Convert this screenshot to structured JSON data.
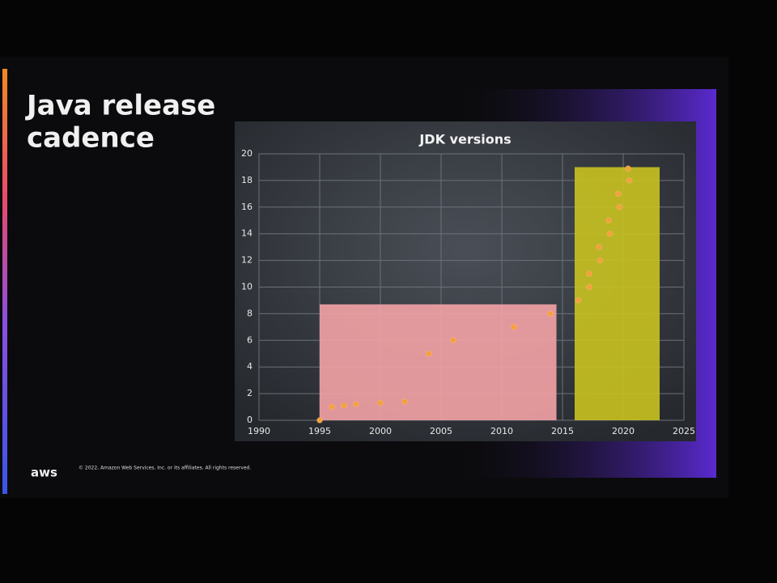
{
  "slide": {
    "title_lines": [
      "Java release",
      "cadence"
    ],
    "logo": "aws",
    "footer": "© 2022, Amazon Web Services, Inc. or its affiliates. All rights reserved."
  },
  "chart_data": {
    "type": "scatter",
    "title": "JDK versions",
    "x": [
      1995,
      1996,
      1997,
      1998,
      2000,
      2002,
      2004,
      2006,
      2011,
      2014,
      2016.3,
      2017.2,
      2017.2,
      2018.1,
      2018.0,
      2018.9,
      2018.8,
      2019.7,
      2019.6,
      2020.5,
      2020.4
    ],
    "values": [
      0,
      1,
      1.1,
      1.2,
      1.3,
      1.4,
      5,
      6,
      7,
      8,
      9,
      10,
      11,
      12,
      13,
      14,
      15,
      16,
      17,
      18,
      18.9
    ],
    "color": "#f5a03c",
    "regions": [
      {
        "x": [
          1995,
          2014.5
        ],
        "y": [
          0,
          8.7
        ],
        "color": "#f4a3a6"
      },
      {
        "x": [
          2016,
          2023
        ],
        "y": [
          0,
          19
        ],
        "color": "#c9c220"
      }
    ],
    "xlim": [
      1990,
      2025
    ],
    "ylim": [
      0,
      20
    ],
    "xticks": [
      1990,
      1995,
      2000,
      2005,
      2010,
      2015,
      2020,
      2025
    ],
    "yticks": [
      0,
      2,
      4,
      6,
      8,
      10,
      12,
      14,
      16,
      18,
      20
    ],
    "grid": true
  }
}
